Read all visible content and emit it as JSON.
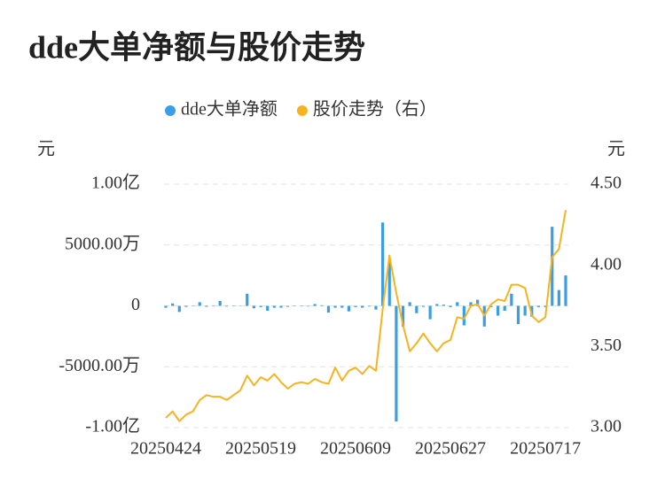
{
  "chart_data": {
    "type": "bar-line",
    "title": "dde大单净额与股价走势",
    "y_unit": "元",
    "y2_unit": "元",
    "categories": [
      "20250424",
      null,
      null,
      null,
      null,
      null,
      null,
      null,
      null,
      null,
      null,
      null,
      null,
      null,
      "20250519",
      null,
      null,
      null,
      null,
      null,
      null,
      null,
      null,
      null,
      null,
      null,
      null,
      null,
      "20250609",
      null,
      null,
      null,
      null,
      null,
      null,
      null,
      null,
      null,
      null,
      null,
      null,
      null,
      "20250627",
      null,
      null,
      null,
      null,
      null,
      null,
      null,
      null,
      null,
      null,
      null,
      null,
      null,
      "20250717",
      null,
      null,
      null
    ],
    "series": [
      {
        "name": "dde大单净额",
        "type": "bar",
        "color": "#3a9ee6",
        "values": [
          -150,
          200,
          -500,
          -80,
          30,
          300,
          -70,
          40,
          400,
          -50,
          30,
          -30,
          1000,
          -200,
          -100,
          -400,
          -150,
          -150,
          -80,
          30,
          -40,
          -50,
          150,
          50,
          -550,
          -150,
          -150,
          -450,
          -100,
          -150,
          -50,
          -300,
          6850,
          3700,
          -9500,
          -1700,
          300,
          -600,
          -80,
          -1100,
          150,
          100,
          -100,
          300,
          -1600,
          300,
          500,
          -1700,
          -100,
          -800,
          -400,
          1000,
          -1500,
          -800,
          -900,
          -100,
          -100,
          6500,
          1300,
          2500
        ]
      },
      {
        "name": "股价走势（右）",
        "type": "line",
        "axis": "y2",
        "color": "#f5b41f",
        "values": [
          3.06,
          3.1,
          3.04,
          3.08,
          3.1,
          3.17,
          3.2,
          3.19,
          3.19,
          3.17,
          3.2,
          3.23,
          3.32,
          3.26,
          3.31,
          3.29,
          3.33,
          3.28,
          3.24,
          3.27,
          3.28,
          3.27,
          3.3,
          3.28,
          3.27,
          3.37,
          3.29,
          3.35,
          3.37,
          3.33,
          3.38,
          3.35,
          3.73,
          4.06,
          3.83,
          3.63,
          3.47,
          3.52,
          3.58,
          3.52,
          3.47,
          3.52,
          3.54,
          3.68,
          3.67,
          3.75,
          3.76,
          3.69,
          3.76,
          3.79,
          3.78,
          3.88,
          3.88,
          3.86,
          3.69,
          3.65,
          3.68,
          4.05,
          4.1,
          4.34
        ]
      }
    ],
    "ylim": [
      -10000,
      10000
    ],
    "yticks": [
      {
        "value": 10000,
        "label": "1.00亿"
      },
      {
        "value": 5000,
        "label": "5000.00万"
      },
      0,
      {
        "value": -5000,
        "label": "-5000.00万"
      },
      {
        "value": -10000,
        "label": "-1.00亿"
      }
    ],
    "y2lim": [
      3.0,
      4.5
    ],
    "y2ticks": [
      {
        "value": 4.5,
        "label": "4.50"
      },
      {
        "value": 4.0,
        "label": "4.00"
      },
      {
        "value": 3.5,
        "label": "3.50"
      },
      {
        "value": 3.0,
        "label": "3.00"
      }
    ],
    "grid": true,
    "legend": "top"
  }
}
